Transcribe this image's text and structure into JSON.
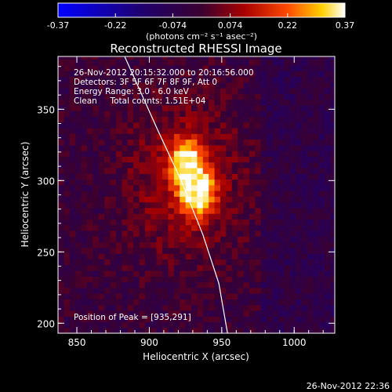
{
  "colorbar": {
    "ticks": [
      "-0.37",
      "-0.22",
      "-0.074",
      "0.074",
      "0.22",
      "0.37"
    ],
    "unit_label": "(photons cm⁻² s⁻¹ asec⁻²)",
    "range": [
      -0.37,
      0.37
    ]
  },
  "chart_data": {
    "type": "heatmap",
    "title": "Reconstructed RHESSI Image",
    "xlabel": "Heliocentric X (arcsec)",
    "ylabel": "Heliocentric Y (arcsec)",
    "xlim": [
      837,
      1028
    ],
    "ylim": [
      193,
      387
    ],
    "xticks": [
      "850",
      "900",
      "950",
      "1000"
    ],
    "yticks": [
      "200",
      "250",
      "300",
      "350"
    ],
    "info_lines": [
      "26-Nov-2012 20:15:32.000 to 20:16:56.000",
      "Detectors: 3F 5F 6F 7F 8F 9F, Att 0",
      "Energy Range: 3.0 - 6.0 keV",
      "Clean     Total counts: 1.51E+04"
    ],
    "peak_label": "Position of Peak = [935,291]",
    "peak": [
      935,
      291
    ],
    "limb_points": [
      [
        883,
        387
      ],
      [
        906,
        335
      ],
      [
        922,
        300
      ],
      [
        937,
        262
      ],
      [
        948,
        228
      ],
      [
        954,
        193
      ]
    ],
    "sources": [
      {
        "x": 933,
        "y": 293,
        "sx": 8,
        "sy": 11,
        "amp": 1.0
      },
      {
        "x": 925,
        "y": 315,
        "sx": 7,
        "sy": 10,
        "amp": 0.85
      },
      {
        "x": 925,
        "y": 300,
        "sx": 28,
        "sy": 38,
        "amp": 0.35
      }
    ]
  },
  "footer": {
    "timestamp": "26-Nov-2012 22:36"
  }
}
